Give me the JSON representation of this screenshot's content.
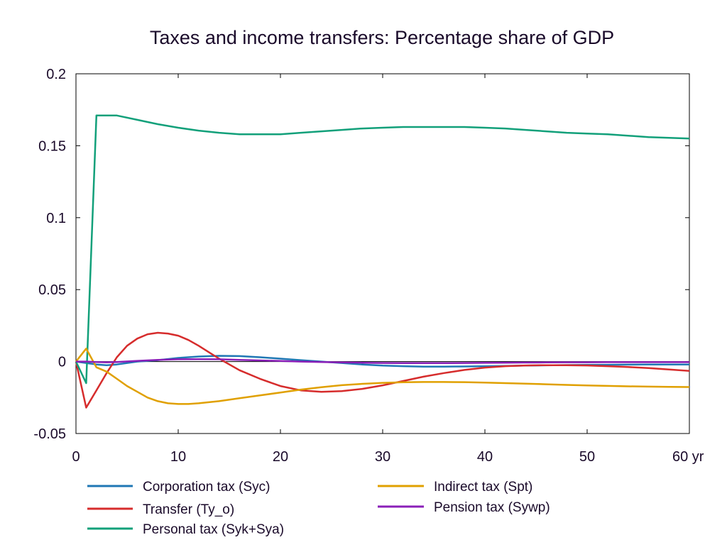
{
  "chart_data": {
    "type": "line",
    "title": "Taxes and income transfers: Percentage share of GDP",
    "xlabel": "",
    "ylabel": "",
    "xlim": [
      0,
      60
    ],
    "ylim": [
      -0.05,
      0.2
    ],
    "grid": false,
    "legend_position": "bottom",
    "x_ticks": [
      {
        "value": 0,
        "label": "0"
      },
      {
        "value": 10,
        "label": "10"
      },
      {
        "value": 20,
        "label": "20"
      },
      {
        "value": 30,
        "label": "30"
      },
      {
        "value": 40,
        "label": "40"
      },
      {
        "value": 50,
        "label": "50"
      },
      {
        "value": 60,
        "label": "60 yr"
      }
    ],
    "y_ticks": [
      {
        "value": -0.05,
        "label": "-0.05"
      },
      {
        "value": 0,
        "label": "0"
      },
      {
        "value": 0.05,
        "label": "0.05"
      },
      {
        "value": 0.1,
        "label": "0.1"
      },
      {
        "value": 0.15,
        "label": "0.15"
      },
      {
        "value": 0.2,
        "label": "0.2"
      }
    ],
    "series": [
      {
        "name": "Corporation tax (Syc)",
        "color": "#1f77b4",
        "x": [
          0,
          1,
          2,
          3,
          4,
          5,
          6,
          8,
          10,
          12,
          14,
          16,
          18,
          20,
          22,
          24,
          26,
          28,
          30,
          32,
          34,
          36,
          38,
          40,
          42,
          44,
          46,
          48,
          50,
          52,
          54,
          56,
          58,
          60
        ],
        "y": [
          0,
          -0.001,
          -0.002,
          -0.0025,
          -0.002,
          -0.001,
          0,
          0.001,
          0.0025,
          0.0035,
          0.004,
          0.0038,
          0.003,
          0.002,
          0.001,
          0,
          -0.001,
          -0.002,
          -0.0028,
          -0.0032,
          -0.0035,
          -0.0035,
          -0.0034,
          -0.0032,
          -0.003,
          -0.0028,
          -0.0026,
          -0.0024,
          -0.0023,
          -0.0022,
          -0.0021,
          -0.002,
          -0.002,
          -0.002
        ]
      },
      {
        "name": "Transfer (Ty_o)",
        "color": "#d62c2c",
        "x": [
          0,
          1,
          2,
          3,
          4,
          5,
          6,
          7,
          8,
          9,
          10,
          11,
          12,
          13,
          14,
          16,
          18,
          20,
          22,
          24,
          26,
          28,
          30,
          32,
          34,
          36,
          38,
          40,
          42,
          44,
          46,
          48,
          50,
          52,
          54,
          56,
          58,
          60
        ],
        "y": [
          0,
          -0.032,
          -0.02,
          -0.008,
          0.003,
          0.011,
          0.016,
          0.019,
          0.02,
          0.0195,
          0.018,
          0.015,
          0.011,
          0.0065,
          0.002,
          -0.006,
          -0.012,
          -0.017,
          -0.02,
          -0.021,
          -0.0205,
          -0.019,
          -0.0165,
          -0.0135,
          -0.0105,
          -0.008,
          -0.0058,
          -0.0042,
          -0.0032,
          -0.0027,
          -0.0025,
          -0.0025,
          -0.0027,
          -0.0032,
          -0.0038,
          -0.0045,
          -0.0055,
          -0.0065
        ]
      },
      {
        "name": "Personal tax (Syk+Sya)",
        "color": "#12a07a",
        "x": [
          0,
          1,
          2,
          3,
          4,
          6,
          8,
          10,
          12,
          14,
          16,
          18,
          20,
          22,
          24,
          26,
          28,
          30,
          32,
          34,
          36,
          38,
          40,
          42,
          44,
          46,
          48,
          50,
          52,
          54,
          56,
          58,
          60
        ],
        "y": [
          0,
          -0.015,
          0.171,
          0.171,
          0.171,
          0.168,
          0.165,
          0.1625,
          0.1605,
          0.159,
          0.158,
          0.158,
          0.158,
          0.159,
          0.16,
          0.161,
          0.162,
          0.1625,
          0.163,
          0.163,
          0.163,
          0.163,
          0.1625,
          0.162,
          0.161,
          0.16,
          0.159,
          0.1585,
          0.158,
          0.157,
          0.156,
          0.1555,
          0.155
        ]
      },
      {
        "name": "Indirect tax (Spt)",
        "color": "#e0a000",
        "x": [
          0,
          1,
          2,
          3,
          4,
          5,
          6,
          7,
          8,
          9,
          10,
          11,
          12,
          14,
          16,
          18,
          20,
          22,
          24,
          26,
          28,
          30,
          32,
          34,
          36,
          38,
          40,
          42,
          44,
          46,
          48,
          50,
          52,
          54,
          56,
          58,
          60
        ],
        "y": [
          0,
          0.009,
          -0.004,
          -0.007,
          -0.012,
          -0.017,
          -0.021,
          -0.025,
          -0.0275,
          -0.029,
          -0.0295,
          -0.0295,
          -0.029,
          -0.0275,
          -0.0255,
          -0.0235,
          -0.0215,
          -0.0195,
          -0.0178,
          -0.0164,
          -0.0155,
          -0.0148,
          -0.0144,
          -0.0142,
          -0.0142,
          -0.0143,
          -0.0146,
          -0.015,
          -0.0154,
          -0.0158,
          -0.0162,
          -0.0166,
          -0.0169,
          -0.0172,
          -0.0174,
          -0.0176,
          -0.0177
        ]
      },
      {
        "name": "Pension tax (Sywp)",
        "color": "#8a1fb8",
        "x": [
          0,
          1,
          2,
          3,
          4,
          6,
          8,
          10,
          12,
          14,
          16,
          18,
          20,
          22,
          24,
          26,
          28,
          30,
          32,
          34,
          36,
          38,
          40,
          42,
          44,
          46,
          48,
          50,
          52,
          54,
          56,
          58,
          60
        ],
        "y": [
          0,
          0,
          -0.0003,
          -0.0005,
          -0.0003,
          0.0005,
          0.0012,
          0.0016,
          0.0017,
          0.0016,
          0.0012,
          0.0008,
          0.0004,
          0,
          -0.0003,
          -0.0006,
          -0.0008,
          -0.001,
          -0.0011,
          -0.0011,
          -0.0011,
          -0.001,
          -0.0009,
          -0.0008,
          -0.0007,
          -0.0006,
          -0.0005,
          -0.0005,
          -0.0004,
          -0.0004,
          -0.0004,
          -0.0004,
          -0.0004
        ]
      }
    ],
    "legend": [
      {
        "series": 0,
        "label": "Corporation tax (Syc)"
      },
      {
        "series": 1,
        "label": "Transfer (Ty_o)"
      },
      {
        "series": 2,
        "label": "Personal tax (Syk+Sya)"
      },
      {
        "series": 3,
        "label": "Indirect tax (Spt)"
      },
      {
        "series": 4,
        "label": "Pension tax (Sywp)"
      }
    ]
  }
}
